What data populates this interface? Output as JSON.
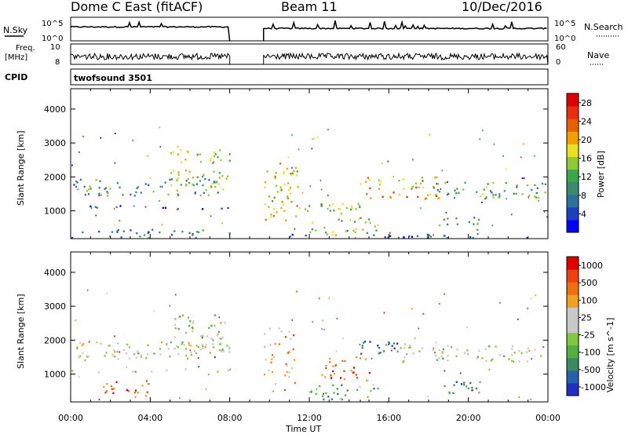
{
  "header": {
    "station": "Dome C East (fitACF)",
    "beam": "Beam 11",
    "date": "10/Dec/2016"
  },
  "ancillary": {
    "nsky_label": "N.Sky",
    "nsky_ticks": [
      "10^5",
      "10^0"
    ],
    "freq_label": "Freq.",
    "freq_unit": "[MHz]",
    "freq_ticks": [
      "10",
      "8"
    ],
    "cpid_label": "CPID",
    "cpid_value": "twofsound 3501",
    "nsearch_label": "N.Search",
    "nsearch_ticks": [
      "10^5",
      "10^0"
    ],
    "nave_label": "Nave",
    "nave_ticks": [
      "60",
      "0"
    ]
  },
  "chart_data": [
    {
      "type": "heatmap",
      "name": "power",
      "ylabel": "Slant Range [km]",
      "xlabel": "Time UT",
      "x_ticks": [
        "00:00",
        "04:00",
        "08:00",
        "12:00",
        "16:00",
        "20:00",
        "00:00"
      ],
      "xlim_hours": [
        0,
        24
      ],
      "y_ticks": [
        1000,
        2000,
        3000,
        4000
      ],
      "ylim": [
        180,
        4600
      ],
      "data_gap_hours": [
        8.0,
        9.7
      ],
      "colorbar": {
        "label": "Power [dB]",
        "ticks": [
          4,
          8,
          12,
          16,
          20,
          24,
          28
        ],
        "range": [
          0,
          30
        ],
        "colors": [
          "#0000ff",
          "#1e3fbf",
          "#2f6fa0",
          "#3a8a70",
          "#3aa84a",
          "#8ccc30",
          "#e8e020",
          "#f0a000",
          "#e86000",
          "#e83010",
          "#e00000"
        ]
      },
      "echo_regions": [
        {
          "t0": 0.0,
          "t1": 8.0,
          "r0": 1450,
          "r1": 1950,
          "level": 0.35
        },
        {
          "t0": 0.0,
          "t1": 8.0,
          "r0": 1050,
          "r1": 1150,
          "level": 0.2
        },
        {
          "t0": 0.0,
          "t1": 8.0,
          "r0": 200,
          "r1": 450,
          "level": 0.25
        },
        {
          "t0": 5.0,
          "t1": 8.0,
          "r0": 1600,
          "r1": 2800,
          "level": 0.55
        },
        {
          "t0": 9.7,
          "t1": 11.5,
          "r0": 700,
          "r1": 2400,
          "level": 0.6
        },
        {
          "t0": 11.5,
          "t1": 14.5,
          "r0": 900,
          "r1": 1300,
          "level": 0.45
        },
        {
          "t0": 12.0,
          "t1": 15.5,
          "r0": 250,
          "r1": 800,
          "level": 0.5
        },
        {
          "t0": 14.5,
          "t1": 18.5,
          "r0": 1300,
          "r1": 2000,
          "level": 0.7
        },
        {
          "t0": 16.5,
          "t1": 24.0,
          "r0": 1350,
          "r1": 1850,
          "level": 0.4
        },
        {
          "t0": 18.5,
          "t1": 20.5,
          "r0": 400,
          "r1": 800,
          "level": 0.35
        },
        {
          "t0": 9.7,
          "t1": 24.0,
          "r0": 200,
          "r1": 300,
          "level": 0.2
        }
      ]
    },
    {
      "type": "heatmap",
      "name": "velocity",
      "ylabel": "Slant Range [km]",
      "xlabel": "Time UT",
      "x_ticks": [
        "00:00",
        "04:00",
        "08:00",
        "12:00",
        "16:00",
        "20:00",
        "00:00"
      ],
      "xlim_hours": [
        0,
        24
      ],
      "y_ticks": [
        1000,
        2000,
        3000,
        4000
      ],
      "ylim": [
        180,
        4600
      ],
      "data_gap_hours": [
        8.0,
        9.7
      ],
      "colorbar": {
        "label": "Velocity [m s^-1]",
        "ticks": [
          "1000",
          "500",
          "100",
          "25",
          "-25",
          "-100",
          "-500",
          "-1000"
        ],
        "colors": [
          "#2030c0",
          "#2860b0",
          "#3a8a60",
          "#50b040",
          "#80c840",
          "#c8c8c8",
          "#c8c8c8",
          "#f0a020",
          "#f07010",
          "#f04010",
          "#e00000"
        ]
      },
      "echo_regions": [
        {
          "t0": 0.0,
          "t1": 8.0,
          "r0": 1450,
          "r1": 1950,
          "level": 0.5
        },
        {
          "t0": 0.0,
          "t1": 8.0,
          "r0": 1050,
          "r1": 1150,
          "level": 0.5
        },
        {
          "t0": 1.5,
          "t1": 4.0,
          "r0": 300,
          "r1": 800,
          "level": 0.8
        },
        {
          "t0": 5.0,
          "t1": 8.0,
          "r0": 1600,
          "r1": 2800,
          "level": 0.5
        },
        {
          "t0": 9.7,
          "t1": 11.5,
          "r0": 700,
          "r1": 2400,
          "level": 0.7
        },
        {
          "t0": 12.5,
          "t1": 15.0,
          "r0": 800,
          "r1": 1500,
          "level": 0.8
        },
        {
          "t0": 12.0,
          "t1": 15.5,
          "r0": 250,
          "r1": 700,
          "level": 0.3
        },
        {
          "t0": 14.5,
          "t1": 16.5,
          "r0": 1600,
          "r1": 2000,
          "level": 0.15
        },
        {
          "t0": 16.5,
          "t1": 24.0,
          "r0": 1350,
          "r1": 1850,
          "level": 0.5
        },
        {
          "t0": 18.5,
          "t1": 20.5,
          "r0": 400,
          "r1": 800,
          "level": 0.2
        }
      ]
    }
  ]
}
